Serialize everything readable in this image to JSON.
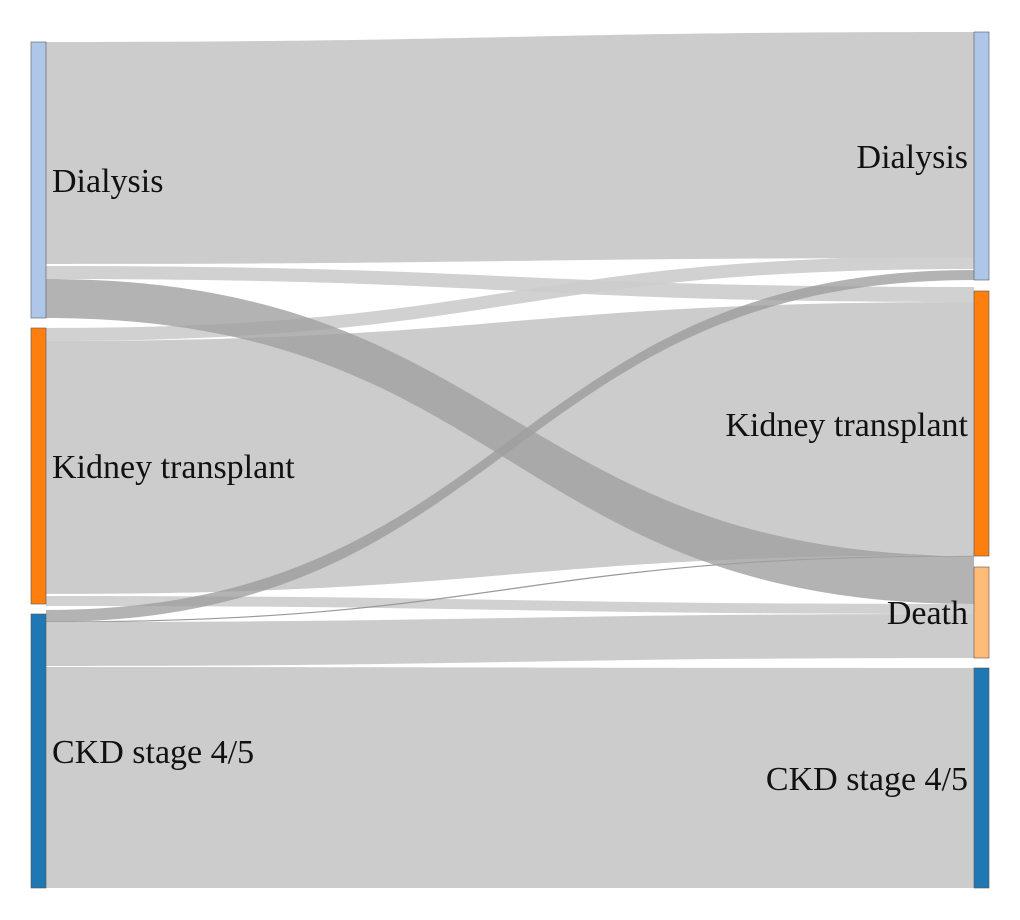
{
  "diagram": {
    "type": "sankey",
    "left_nodes": [
      {
        "id": "dialysis_l",
        "label": "Dialysis",
        "color": "#aec7e8"
      },
      {
        "id": "transplant_l",
        "label": "Kidney transplant",
        "color": "#ff7f0e"
      },
      {
        "id": "ckd_l",
        "label": "CKD stage 4/5",
        "color": "#1f77b4"
      }
    ],
    "right_nodes": [
      {
        "id": "dialysis_r",
        "label": "Dialysis",
        "color": "#aec7e8"
      },
      {
        "id": "transplant_r",
        "label": "Kidney transplant",
        "color": "#ff7f0e"
      },
      {
        "id": "death_r",
        "label": "Death",
        "color": "#ffbb78"
      },
      {
        "id": "ckd_r",
        "label": "CKD stage 4/5",
        "color": "#1f77b4"
      }
    ],
    "link_colors": {
      "default": "#cccccc",
      "highlight": "#a0a0a0"
    }
  }
}
